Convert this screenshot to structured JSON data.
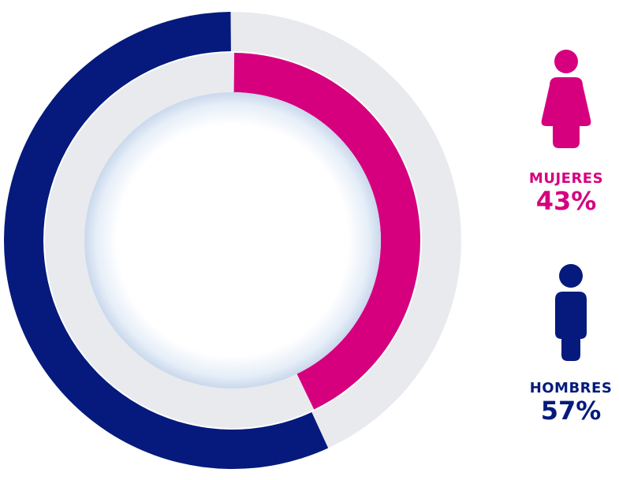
{
  "chart_data": {
    "type": "pie",
    "style": "double-ring donut",
    "series": [
      {
        "name": "MUJERES",
        "value": 43,
        "value_label": "43%",
        "color": "#D6007F",
        "icon": "female-person-icon"
      },
      {
        "name": "HOMBRES",
        "value": 57,
        "value_label": "57%",
        "color": "#051A7C",
        "icon": "male-person-icon"
      }
    ],
    "track_color": "#E9EAEE",
    "legend_placement": "right"
  }
}
